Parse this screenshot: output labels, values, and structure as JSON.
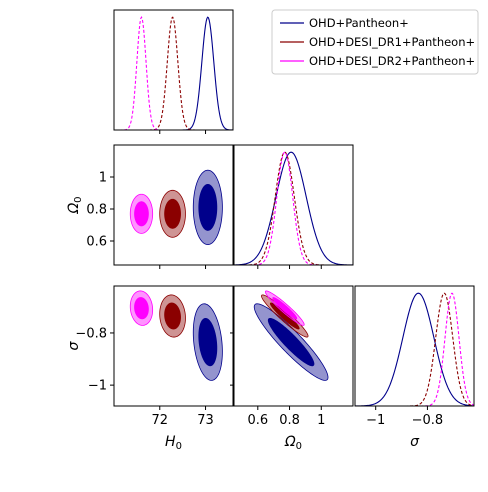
{
  "chart_data": {
    "type": "corner",
    "parameters": [
      {
        "name": "H0",
        "label": "H",
        "sub": "0",
        "range": [
          71.0,
          73.6
        ],
        "ticks": [
          72,
          73
        ]
      },
      {
        "name": "Omega0",
        "label": "Ω",
        "sub": "0",
        "range": [
          0.45,
          1.2
        ],
        "ticks": [
          0.6,
          0.8,
          1.0
        ]
      },
      {
        "name": "sigma",
        "label": "σ",
        "sub": "",
        "range": [
          -1.08,
          -0.62
        ],
        "ticks": [
          -1.0,
          -0.8
        ]
      }
    ],
    "legend": {
      "position": "top-right",
      "entries": [
        "OHD+Pantheon+",
        "OHD+DESI_DR1+Pantheon+",
        "OHD+DESI_DR2+Pantheon+"
      ]
    },
    "series": [
      {
        "name": "OHD+Pantheon+",
        "color": "#00008b",
        "dash": false,
        "mean": {
          "H0": 73.05,
          "Omega0": 0.81,
          "sigma": -0.835
        },
        "sd": {
          "H0": 0.13,
          "Omega0": 0.095,
          "sigma": 0.06
        },
        "corr": {
          "H0-Omega0": 0.0,
          "H0-sigma": -0.25,
          "Omega0-sigma": -0.92
        }
      },
      {
        "name": "OHD+DESI_DR1+Pantheon+",
        "color": "#8b0000",
        "dash": true,
        "mean": {
          "H0": 72.28,
          "Omega0": 0.77,
          "sigma": -0.735
        },
        "sd": {
          "H0": 0.115,
          "Omega0": 0.06,
          "sigma": 0.033
        },
        "corr": {
          "H0-Omega0": 0.0,
          "H0-sigma": -0.1,
          "Omega0-sigma": -0.95
        }
      },
      {
        "name": "OHD+DESI_DR2+Pantheon+",
        "color": "#ff00ff",
        "dash": true,
        "mean": {
          "H0": 71.6,
          "Omega0": 0.77,
          "sigma": -0.705
        },
        "sd": {
          "H0": 0.1,
          "Omega0": 0.05,
          "sigma": 0.027
        },
        "corr": {
          "H0-Omega0": 0.0,
          "H0-sigma": -0.1,
          "Omega0-sigma": -0.95
        }
      }
    ]
  }
}
